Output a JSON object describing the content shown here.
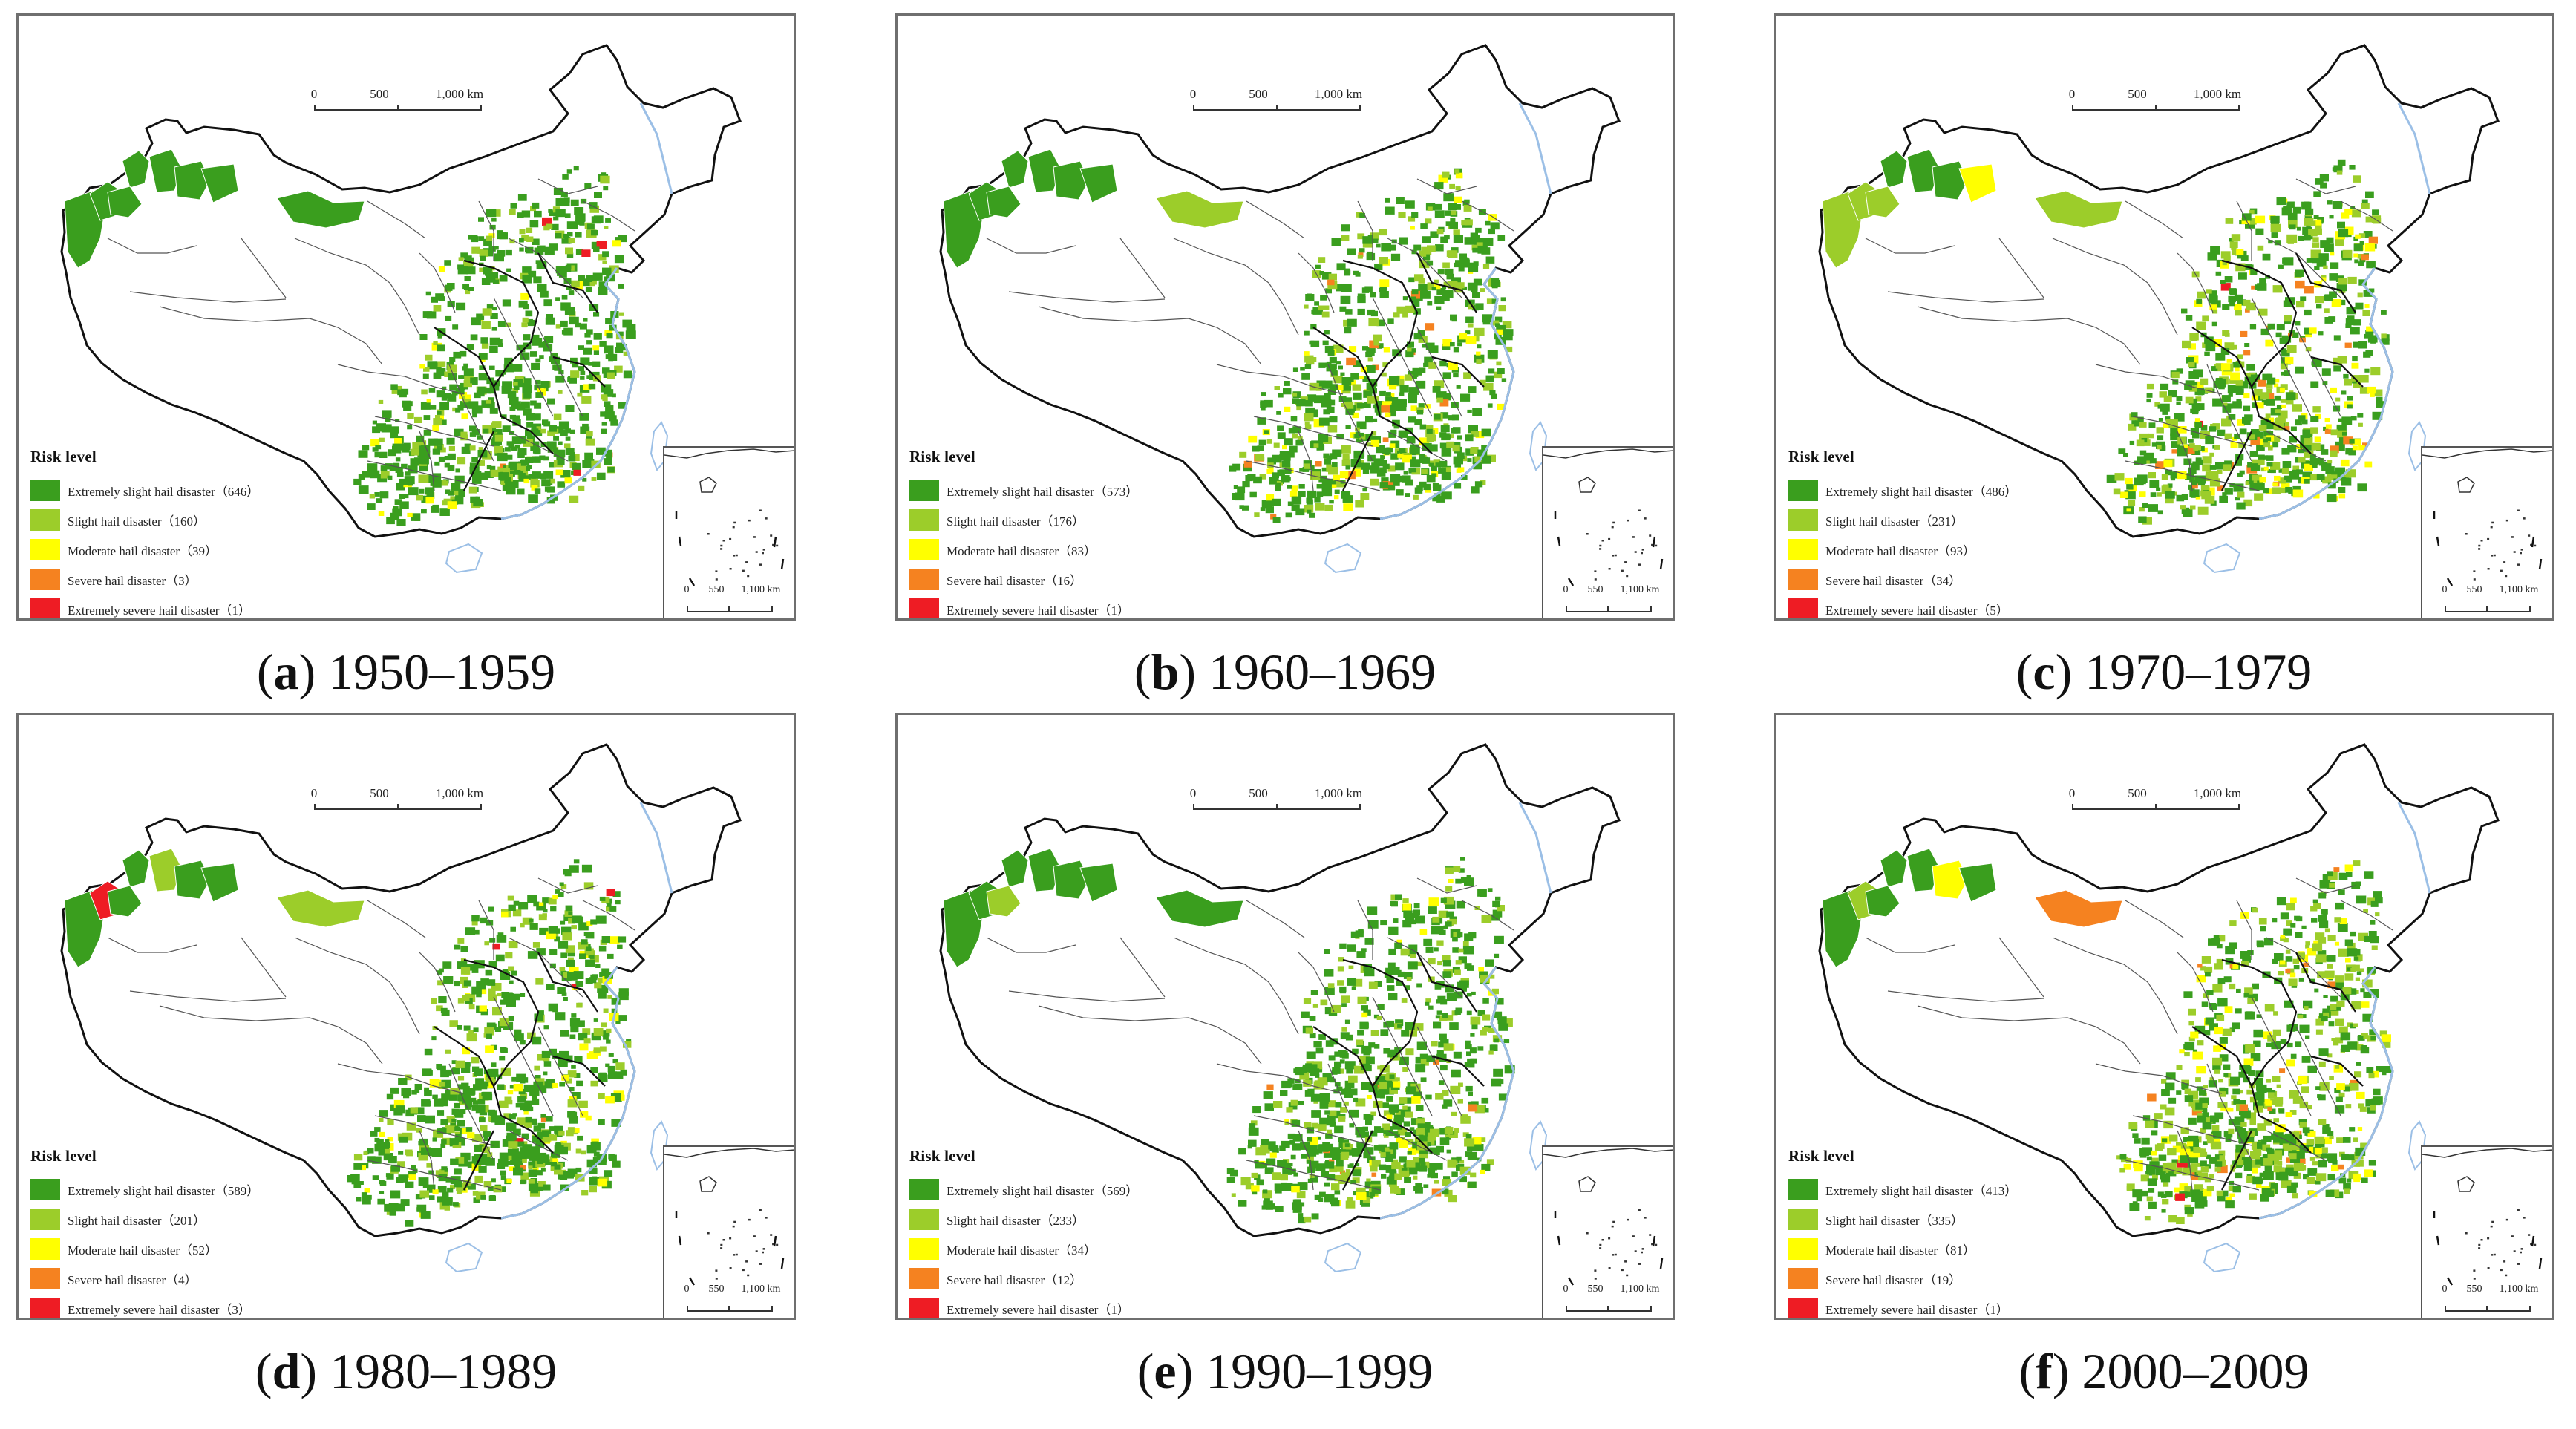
{
  "colors": {
    "extremely_slight": "#3a9e1e",
    "slight": "#9ccd2a",
    "moderate": "#ffff00",
    "severe": "#f58220",
    "extremely_severe": "#ee1c24",
    "coast": "#9bbfe6",
    "border": "#111111",
    "province": "#555555"
  },
  "scale": {
    "labels": [
      "0",
      "500",
      "1,000 km"
    ]
  },
  "inset_scale": {
    "labels": [
      "0",
      "550",
      "1,100 km"
    ]
  },
  "legend_title": "Risk level",
  "panels": [
    {
      "letter": "a",
      "period": "1950–1959",
      "legend": [
        {
          "label": "Extremely slight hail disaster",
          "count": "（646）"
        },
        {
          "label": "Slight hail disaster",
          "count": "（160）"
        },
        {
          "label": "Moderate hail disaster",
          "count": "（39）"
        },
        {
          "label": "Severe hail disaster",
          "count": "（3）"
        },
        {
          "label": "Extremely severe hail disaster",
          "count": "（1）"
        }
      ]
    },
    {
      "letter": "b",
      "period": "1960–1969",
      "legend": [
        {
          "label": "Extremely slight hail disaster",
          "count": "（573）"
        },
        {
          "label": "Slight hail disaster",
          "count": "（176）"
        },
        {
          "label": "Moderate hail disaster",
          "count": "（83）"
        },
        {
          "label": "Severe hail disaster",
          "count": "（16）"
        },
        {
          "label": "Extremely severe hail disaster",
          "count": "（1）"
        }
      ]
    },
    {
      "letter": "c",
      "period": "1970–1979",
      "legend": [
        {
          "label": "Extremely slight hail disaster",
          "count": "（486）"
        },
        {
          "label": "Slight hail disaster",
          "count": "（231）"
        },
        {
          "label": "Moderate hail disaster",
          "count": "（93）"
        },
        {
          "label": "Severe hail disaster",
          "count": "（34）"
        },
        {
          "label": "Extremely severe hail disaster",
          "count": "（5）"
        }
      ]
    },
    {
      "letter": "d",
      "period": "1980–1989",
      "legend": [
        {
          "label": "Extremely slight hail disaster",
          "count": "（589）"
        },
        {
          "label": "Slight hail disaster",
          "count": "（201）"
        },
        {
          "label": "Moderate hail disaster",
          "count": "（52）"
        },
        {
          "label": "Severe hail disaster",
          "count": "（4）"
        },
        {
          "label": "Extremely severe hail disaster",
          "count": "（3）"
        }
      ]
    },
    {
      "letter": "e",
      "period": "1990–1999",
      "legend": [
        {
          "label": "Extremely slight hail disaster",
          "count": "（569）"
        },
        {
          "label": "Slight hail disaster",
          "count": "（233）"
        },
        {
          "label": "Moderate hail disaster",
          "count": "（34）"
        },
        {
          "label": "Severe hail disaster",
          "count": "（12）"
        },
        {
          "label": "Extremely severe hail disaster",
          "count": "（1）"
        }
      ]
    },
    {
      "letter": "f",
      "period": "2000–2009",
      "legend": [
        {
          "label": "Extremely slight hail disaster",
          "count": "（413）"
        },
        {
          "label": "Slight hail disaster",
          "count": "（335）"
        },
        {
          "label": "Moderate hail disaster",
          "count": "（81）"
        },
        {
          "label": "Severe hail disaster",
          "count": "（19）"
        },
        {
          "label": "Extremely severe hail disaster",
          "count": "（1）"
        }
      ]
    }
  ]
}
